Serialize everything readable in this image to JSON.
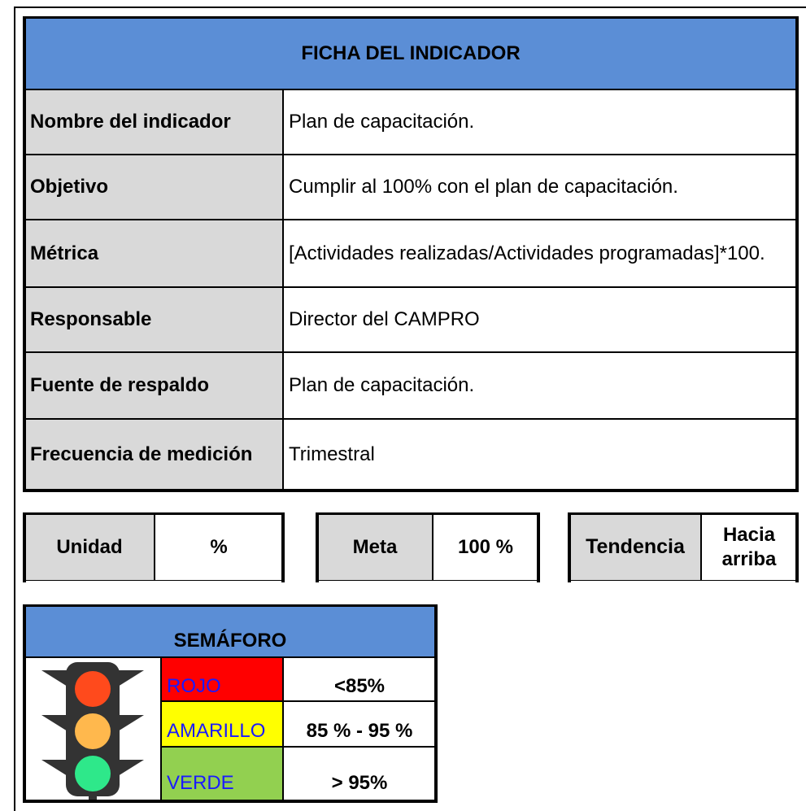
{
  "header": {
    "title": "FICHA DEL INDICADOR"
  },
  "rows": [
    {
      "label": "Nombre del indicador",
      "value": "Plan de capacitación."
    },
    {
      "label": "Objetivo",
      "value": "Cumplir al 100% con el plan de capacitación."
    },
    {
      "label": "Métrica",
      "value": "[Actividades realizadas/Actividades programadas]*100."
    },
    {
      "label": "Responsable",
      "value": "Director del CAMPRO"
    },
    {
      "label": "Fuente de respaldo",
      "value": "Plan de capacitación."
    },
    {
      "label": "Frecuencia de medición",
      "value": "Trimestral"
    }
  ],
  "boxes": [
    {
      "label": "Unidad",
      "value": "%"
    },
    {
      "label": "Meta",
      "value": "100 %"
    },
    {
      "label": "Tendencia",
      "value": "Hacia arriba"
    }
  ],
  "semaforo": {
    "title": "SEMÁFORO",
    "rows": [
      {
        "label": "ROJO",
        "value": "<85%"
      },
      {
        "label": "AMARILLO",
        "value": "85 % - 95 %"
      },
      {
        "label": "VERDE",
        "value": "> 95%"
      }
    ]
  }
}
